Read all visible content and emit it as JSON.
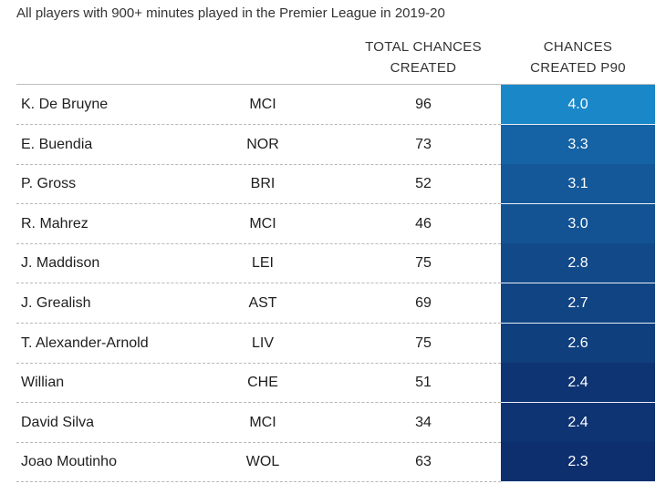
{
  "subtitle": "All players with 900+ minutes played in the Premier League in 2019-20",
  "headers": {
    "total_line1": "TOTAL CHANCES",
    "total_line2": "CREATED",
    "p90_line1": "CHANCES",
    "p90_line2": "CREATED P90"
  },
  "colors": {
    "p90_max": "#1a87c9",
    "p90_min": "#0e2f6e"
  },
  "chart_data": {
    "type": "table",
    "columns": [
      "Player",
      "Team",
      "TOTAL CHANCES CREATED",
      "CHANCES CREATED P90"
    ],
    "rows": [
      {
        "player": "K. De Bruyne",
        "team": "MCI",
        "total": "96",
        "p90": "4.0"
      },
      {
        "player": "E. Buendia",
        "team": "NOR",
        "total": "73",
        "p90": "3.3"
      },
      {
        "player": "P. Gross",
        "team": "BRI",
        "total": "52",
        "p90": "3.1"
      },
      {
        "player": "R. Mahrez",
        "team": "MCI",
        "total": "46",
        "p90": "3.0"
      },
      {
        "player": "J. Maddison",
        "team": "LEI",
        "total": "75",
        "p90": "2.8"
      },
      {
        "player": "J. Grealish",
        "team": "AST",
        "total": "69",
        "p90": "2.7"
      },
      {
        "player": "T. Alexander-Arnold",
        "team": "LIV",
        "total": "75",
        "p90": "2.6"
      },
      {
        "player": "Willian",
        "team": "CHE",
        "total": "51",
        "p90": "2.4"
      },
      {
        "player": "David Silva",
        "team": "MCI",
        "total": "34",
        "p90": "2.4"
      },
      {
        "player": "Joao Moutinho",
        "team": "WOL",
        "total": "63",
        "p90": "2.3"
      }
    ]
  }
}
